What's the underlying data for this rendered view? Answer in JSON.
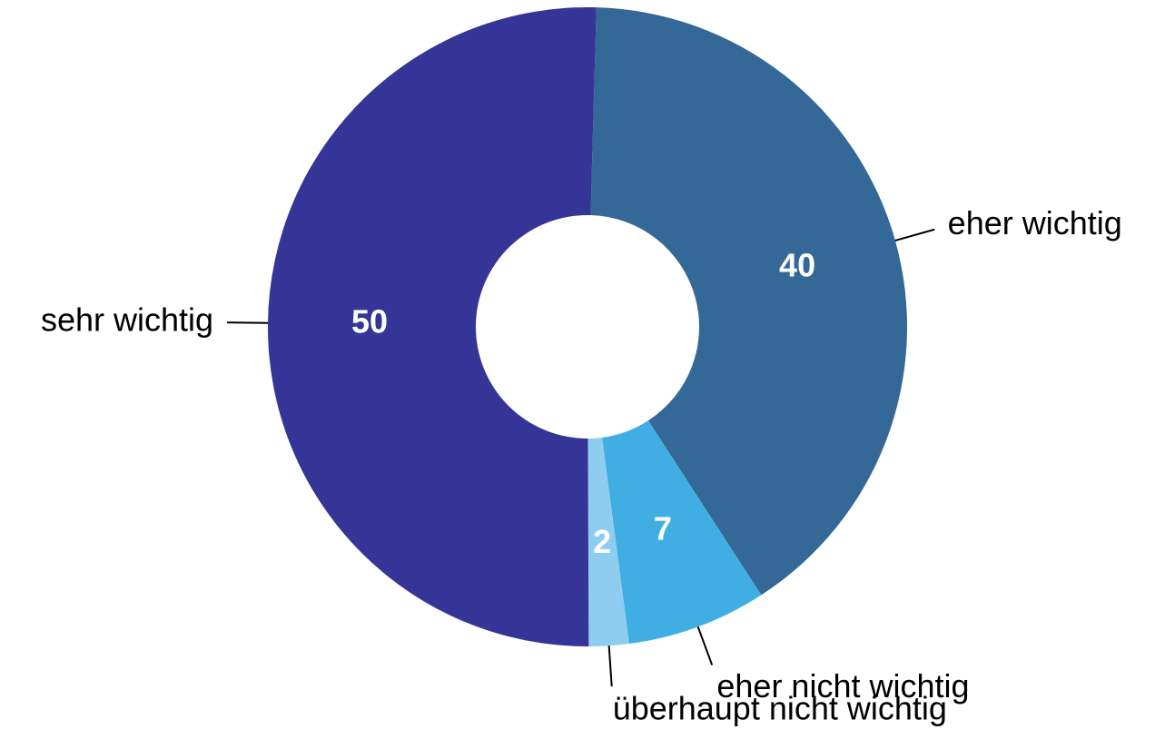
{
  "chart_data": {
    "type": "donut",
    "categories": [
      "eher wichtig",
      "eher nicht wichtig",
      "überhaupt nicht wichtig",
      "sehr wichtig"
    ],
    "values": [
      40,
      7,
      2,
      50
    ],
    "colors": [
      "#346897",
      "#41aee3",
      "#8ecdf0",
      "#353598"
    ]
  }
}
